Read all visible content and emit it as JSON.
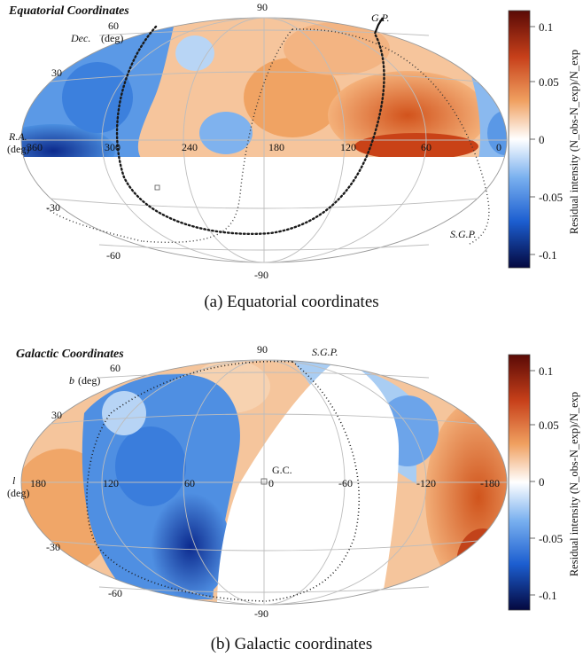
{
  "panels": [
    {
      "id": "a",
      "map_title": "Equatorial Coordinates",
      "lat_axis_label": "Dec.",
      "lat_axis_unit": "(deg)",
      "lon_axis_label": "R.A.",
      "lon_axis_unit": "(deg)",
      "lon_ticks": [
        "360",
        "300",
        "240",
        "180",
        "120",
        "60",
        "0"
      ],
      "lat_ticks_top": [
        "90",
        "60",
        "30"
      ],
      "lat_ticks_bottom": [
        "-30",
        "-60",
        "-90"
      ],
      "annotations": [
        "G.P.",
        "S.G.P."
      ],
      "colorbar_label": "Residual intensity (N_obs-N_exp)/N_exp",
      "colorbar_ticks": [
        "0.1",
        "0.05",
        "0",
        "-0.05",
        "-0.1"
      ],
      "caption": "(a)  Equatorial coordinates"
    },
    {
      "id": "b",
      "map_title": "Galactic Coordinates",
      "lat_axis_label": "b",
      "lat_axis_unit": "(deg)",
      "lon_axis_label": "l",
      "lon_axis_unit": "(deg)",
      "lon_ticks": [
        "180",
        "120",
        "60",
        "0",
        "-60",
        "-120",
        "-180"
      ],
      "lat_ticks_top": [
        "90",
        "60",
        "30"
      ],
      "lat_ticks_bottom": [
        "-30",
        "-60",
        "-90"
      ],
      "annotations": [
        "S.G.P.",
        "G.C."
      ],
      "colorbar_label": "Residual intensity (N_obs-N_exp)/N_exp",
      "colorbar_ticks": [
        "0.1",
        "0.05",
        "0",
        "-0.05",
        "-0.1"
      ],
      "caption": "(b)  Galactic coordinates"
    }
  ],
  "colors": {
    "excess": "#e0782f",
    "excess_strong": "#7a0d08",
    "deficit": "#3b84dc",
    "deficit_strong": "#050a55",
    "zero": "#ffffff",
    "grid": "#bfbfbf"
  }
}
